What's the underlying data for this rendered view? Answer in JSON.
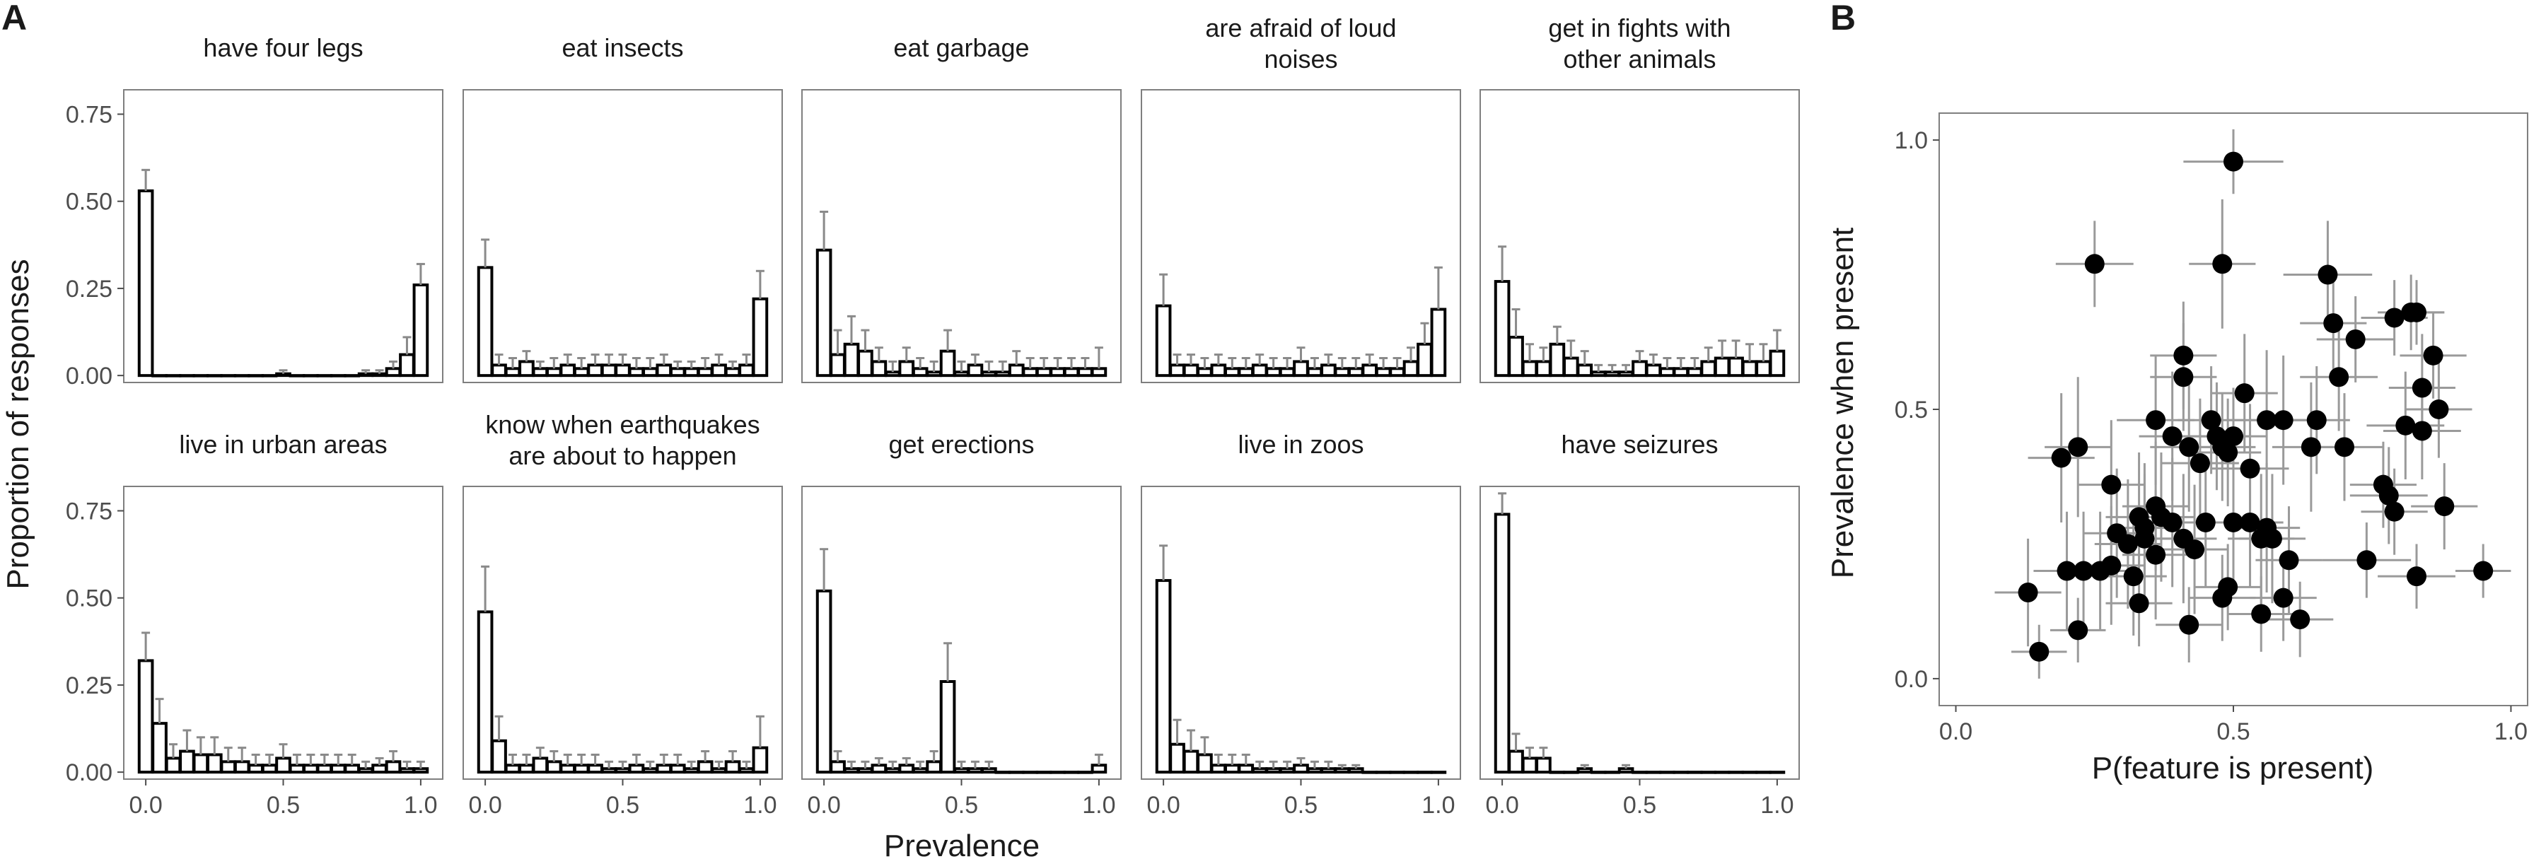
{
  "panel_a": {
    "tag": "A",
    "xlabel": "Prevalence",
    "ylabel": "Proportion of responses",
    "x_ticks": [
      "0.0",
      "0.5",
      "1.0"
    ],
    "y_ticks": [
      "0.00",
      "0.25",
      "0.50",
      "0.75"
    ]
  },
  "panel_b": {
    "tag": "B",
    "xlabel": "P(feature is present)",
    "ylabel": "Prevalence when present",
    "x_ticks": [
      "0.0",
      "0.5",
      "1.0"
    ],
    "y_ticks": [
      "0.0",
      "0.5",
      "1.0"
    ]
  },
  "chart_data": [
    {
      "type": "bar",
      "panel": "A",
      "xlabel": "Prevalence",
      "ylabel": "Proportion of responses",
      "xlim": [
        -0.08,
        1.08
      ],
      "ylim": [
        -0.02,
        0.82
      ],
      "bins": [
        0,
        0.05,
        0.1,
        0.15,
        0.2,
        0.25,
        0.3,
        0.35,
        0.4,
        0.45,
        0.5,
        0.55,
        0.6,
        0.65,
        0.7,
        0.75,
        0.8,
        0.85,
        0.9,
        0.95,
        1
      ],
      "error_bars": "upper whisker (value + error)",
      "facets": [
        {
          "title_lines": [
            "have four legs"
          ],
          "values": [
            0.53,
            0,
            0,
            0,
            0,
            0,
            0,
            0,
            0,
            0,
            0.005,
            0,
            0,
            0,
            0,
            0,
            0.005,
            0.005,
            0.02,
            0.06,
            0.26
          ],
          "errors": [
            0.06,
            0,
            0,
            0,
            0,
            0,
            0,
            0,
            0,
            0,
            0.01,
            0,
            0,
            0,
            0,
            0,
            0.01,
            0.01,
            0.02,
            0.05,
            0.06
          ]
        },
        {
          "title_lines": [
            "eat insects"
          ],
          "values": [
            0.31,
            0.03,
            0.02,
            0.04,
            0.02,
            0.02,
            0.03,
            0.02,
            0.03,
            0.03,
            0.03,
            0.02,
            0.02,
            0.03,
            0.02,
            0.02,
            0.02,
            0.03,
            0.02,
            0.03,
            0.22
          ],
          "errors": [
            0.08,
            0.03,
            0.03,
            0.03,
            0.02,
            0.03,
            0.03,
            0.03,
            0.03,
            0.03,
            0.03,
            0.03,
            0.03,
            0.03,
            0.02,
            0.02,
            0.03,
            0.03,
            0.02,
            0.03,
            0.08
          ]
        },
        {
          "title_lines": [
            "eat garbage"
          ],
          "values": [
            0.36,
            0.06,
            0.09,
            0.07,
            0.04,
            0.01,
            0.04,
            0.02,
            0.01,
            0.07,
            0.01,
            0.03,
            0.01,
            0.01,
            0.03,
            0.02,
            0.02,
            0.02,
            0.02,
            0.02,
            0.02
          ],
          "errors": [
            0.11,
            0.07,
            0.08,
            0.06,
            0.04,
            0.03,
            0.04,
            0.03,
            0.03,
            0.06,
            0.03,
            0.03,
            0.03,
            0.03,
            0.04,
            0.03,
            0.03,
            0.03,
            0.03,
            0.03,
            0.06
          ]
        },
        {
          "title_lines": [
            "are afraid of loud",
            "noises"
          ],
          "values": [
            0.2,
            0.03,
            0.03,
            0.02,
            0.03,
            0.02,
            0.02,
            0.03,
            0.02,
            0.02,
            0.04,
            0.02,
            0.03,
            0.02,
            0.02,
            0.03,
            0.02,
            0.02,
            0.04,
            0.09,
            0.19
          ],
          "errors": [
            0.09,
            0.03,
            0.03,
            0.03,
            0.03,
            0.03,
            0.03,
            0.03,
            0.03,
            0.03,
            0.04,
            0.03,
            0.03,
            0.03,
            0.03,
            0.03,
            0.03,
            0.03,
            0.04,
            0.06,
            0.12
          ]
        },
        {
          "title_lines": [
            "get in fights with",
            "other animals"
          ],
          "values": [
            0.27,
            0.11,
            0.04,
            0.04,
            0.09,
            0.05,
            0.03,
            0.01,
            0.01,
            0.01,
            0.04,
            0.03,
            0.02,
            0.02,
            0.02,
            0.04,
            0.05,
            0.05,
            0.04,
            0.04,
            0.07
          ],
          "errors": [
            0.1,
            0.08,
            0.05,
            0.04,
            0.05,
            0.05,
            0.04,
            0.02,
            0.02,
            0.02,
            0.03,
            0.03,
            0.03,
            0.03,
            0.03,
            0.04,
            0.05,
            0.05,
            0.05,
            0.05,
            0.06
          ]
        },
        {
          "title_lines": [
            "live in urban areas"
          ],
          "values": [
            0.32,
            0.14,
            0.04,
            0.06,
            0.05,
            0.05,
            0.03,
            0.03,
            0.02,
            0.02,
            0.04,
            0.02,
            0.02,
            0.02,
            0.02,
            0.02,
            0.01,
            0.02,
            0.03,
            0.01,
            0.01
          ],
          "errors": [
            0.08,
            0.07,
            0.04,
            0.06,
            0.05,
            0.05,
            0.04,
            0.04,
            0.03,
            0.03,
            0.04,
            0.03,
            0.03,
            0.03,
            0.03,
            0.03,
            0.02,
            0.02,
            0.03,
            0.02,
            0.02
          ]
        },
        {
          "title_lines": [
            "know when earthquakes",
            "are about to happen"
          ],
          "values": [
            0.46,
            0.09,
            0.02,
            0.02,
            0.04,
            0.03,
            0.02,
            0.02,
            0.02,
            0.01,
            0.01,
            0.02,
            0.01,
            0.02,
            0.02,
            0.01,
            0.03,
            0.01,
            0.03,
            0.01,
            0.07
          ],
          "errors": [
            0.13,
            0.07,
            0.03,
            0.03,
            0.03,
            0.03,
            0.03,
            0.03,
            0.03,
            0.02,
            0.02,
            0.03,
            0.02,
            0.03,
            0.03,
            0.02,
            0.03,
            0.02,
            0.03,
            0.02,
            0.09
          ]
        },
        {
          "title_lines": [
            "get erections"
          ],
          "values": [
            0.52,
            0.03,
            0.01,
            0.01,
            0.02,
            0.01,
            0.02,
            0.01,
            0.03,
            0.26,
            0.01,
            0.01,
            0.01,
            0,
            0,
            0,
            0,
            0,
            0,
            0,
            0.02
          ],
          "errors": [
            0.12,
            0.03,
            0.02,
            0.02,
            0.02,
            0.02,
            0.02,
            0.02,
            0.03,
            0.11,
            0.02,
            0.02,
            0.02,
            0,
            0,
            0,
            0,
            0,
            0,
            0,
            0.03
          ]
        },
        {
          "title_lines": [
            "live in zoos"
          ],
          "values": [
            0.55,
            0.08,
            0.06,
            0.05,
            0.02,
            0.02,
            0.02,
            0.01,
            0.01,
            0.01,
            0.02,
            0.01,
            0.01,
            0.01,
            0.01,
            0,
            0,
            0,
            0,
            0,
            0
          ],
          "errors": [
            0.1,
            0.07,
            0.06,
            0.05,
            0.03,
            0.03,
            0.03,
            0.02,
            0.02,
            0.02,
            0.02,
            0.02,
            0.02,
            0.01,
            0.01,
            0,
            0,
            0,
            0,
            0,
            0
          ]
        },
        {
          "title_lines": [
            "have seizures"
          ],
          "values": [
            0.74,
            0.06,
            0.04,
            0.04,
            0,
            0,
            0.01,
            0,
            0,
            0.01,
            0,
            0,
            0,
            0,
            0,
            0,
            0,
            0,
            0,
            0,
            0
          ],
          "errors": [
            0.06,
            0.05,
            0.03,
            0.03,
            0,
            0,
            0.01,
            0,
            0,
            0.01,
            0,
            0,
            0,
            0,
            0,
            0,
            0,
            0,
            0,
            0,
            0
          ]
        }
      ]
    },
    {
      "type": "scatter",
      "panel": "B",
      "xlabel": "P(feature is present)",
      "ylabel": "Prevalence when present",
      "xlim": [
        -0.03,
        1.03
      ],
      "ylim": [
        -0.05,
        1.05
      ],
      "points": [
        {
          "x": 0.5,
          "y": 0.96,
          "xerr": 0.09,
          "yerr": 0.06
        },
        {
          "x": 0.25,
          "y": 0.77,
          "xerr": 0.07,
          "yerr": 0.08
        },
        {
          "x": 0.48,
          "y": 0.77,
          "xerr": 0.06,
          "yerr": 0.12
        },
        {
          "x": 0.67,
          "y": 0.75,
          "xerr": 0.08,
          "yerr": 0.1
        },
        {
          "x": 0.68,
          "y": 0.66,
          "xerr": 0.06,
          "yerr": 0.1
        },
        {
          "x": 0.72,
          "y": 0.63,
          "xerr": 0.07,
          "yerr": 0.08
        },
        {
          "x": 0.79,
          "y": 0.67,
          "xerr": 0.06,
          "yerr": 0.07
        },
        {
          "x": 0.82,
          "y": 0.68,
          "xerr": 0.06,
          "yerr": 0.07
        },
        {
          "x": 0.83,
          "y": 0.68,
          "xerr": 0.05,
          "yerr": 0.06
        },
        {
          "x": 0.86,
          "y": 0.6,
          "xerr": 0.06,
          "yerr": 0.08
        },
        {
          "x": 0.84,
          "y": 0.54,
          "xerr": 0.06,
          "yerr": 0.1
        },
        {
          "x": 0.87,
          "y": 0.5,
          "xerr": 0.06,
          "yerr": 0.09
        },
        {
          "x": 0.81,
          "y": 0.47,
          "xerr": 0.07,
          "yerr": 0.1
        },
        {
          "x": 0.84,
          "y": 0.46,
          "xerr": 0.07,
          "yerr": 0.09
        },
        {
          "x": 0.88,
          "y": 0.32,
          "xerr": 0.06,
          "yerr": 0.08
        },
        {
          "x": 0.95,
          "y": 0.2,
          "xerr": 0.05,
          "yerr": 0.05
        },
        {
          "x": 0.83,
          "y": 0.19,
          "xerr": 0.07,
          "yerr": 0.06
        },
        {
          "x": 0.74,
          "y": 0.22,
          "xerr": 0.08,
          "yerr": 0.07
        },
        {
          "x": 0.78,
          "y": 0.34,
          "xerr": 0.07,
          "yerr": 0.09
        },
        {
          "x": 0.77,
          "y": 0.36,
          "xerr": 0.06,
          "yerr": 0.08
        },
        {
          "x": 0.79,
          "y": 0.31,
          "xerr": 0.06,
          "yerr": 0.08
        },
        {
          "x": 0.7,
          "y": 0.43,
          "xerr": 0.07,
          "yerr": 0.1
        },
        {
          "x": 0.69,
          "y": 0.56,
          "xerr": 0.07,
          "yerr": 0.1
        },
        {
          "x": 0.64,
          "y": 0.43,
          "xerr": 0.07,
          "yerr": 0.12
        },
        {
          "x": 0.65,
          "y": 0.48,
          "xerr": 0.06,
          "yerr": 0.1
        },
        {
          "x": 0.59,
          "y": 0.48,
          "xerr": 0.06,
          "yerr": 0.12
        },
        {
          "x": 0.56,
          "y": 0.48,
          "xerr": 0.07,
          "yerr": 0.13
        },
        {
          "x": 0.52,
          "y": 0.53,
          "xerr": 0.06,
          "yerr": 0.11
        },
        {
          "x": 0.53,
          "y": 0.39,
          "xerr": 0.07,
          "yerr": 0.12
        },
        {
          "x": 0.46,
          "y": 0.48,
          "xerr": 0.06,
          "yerr": 0.1
        },
        {
          "x": 0.47,
          "y": 0.45,
          "xerr": 0.06,
          "yerr": 0.1
        },
        {
          "x": 0.48,
          "y": 0.43,
          "xerr": 0.06,
          "yerr": 0.1
        },
        {
          "x": 0.49,
          "y": 0.42,
          "xerr": 0.06,
          "yerr": 0.1
        },
        {
          "x": 0.5,
          "y": 0.45,
          "xerr": 0.06,
          "yerr": 0.09
        },
        {
          "x": 0.41,
          "y": 0.6,
          "xerr": 0.06,
          "yerr": 0.1
        },
        {
          "x": 0.41,
          "y": 0.56,
          "xerr": 0.06,
          "yerr": 0.1
        },
        {
          "x": 0.36,
          "y": 0.48,
          "xerr": 0.07,
          "yerr": 0.12
        },
        {
          "x": 0.39,
          "y": 0.45,
          "xerr": 0.06,
          "yerr": 0.12
        },
        {
          "x": 0.42,
          "y": 0.43,
          "xerr": 0.07,
          "yerr": 0.12
        },
        {
          "x": 0.44,
          "y": 0.4,
          "xerr": 0.07,
          "yerr": 0.12
        },
        {
          "x": 0.19,
          "y": 0.41,
          "xerr": 0.06,
          "yerr": 0.12
        },
        {
          "x": 0.22,
          "y": 0.43,
          "xerr": 0.06,
          "yerr": 0.13
        },
        {
          "x": 0.28,
          "y": 0.36,
          "xerr": 0.06,
          "yerr": 0.12
        },
        {
          "x": 0.33,
          "y": 0.3,
          "xerr": 0.06,
          "yerr": 0.12
        },
        {
          "x": 0.34,
          "y": 0.28,
          "xerr": 0.06,
          "yerr": 0.12
        },
        {
          "x": 0.36,
          "y": 0.32,
          "xerr": 0.06,
          "yerr": 0.12
        },
        {
          "x": 0.37,
          "y": 0.3,
          "xerr": 0.06,
          "yerr": 0.12
        },
        {
          "x": 0.39,
          "y": 0.29,
          "xerr": 0.06,
          "yerr": 0.12
        },
        {
          "x": 0.41,
          "y": 0.26,
          "xerr": 0.06,
          "yerr": 0.12
        },
        {
          "x": 0.43,
          "y": 0.24,
          "xerr": 0.06,
          "yerr": 0.12
        },
        {
          "x": 0.45,
          "y": 0.29,
          "xerr": 0.06,
          "yerr": 0.12
        },
        {
          "x": 0.5,
          "y": 0.29,
          "xerr": 0.06,
          "yerr": 0.12
        },
        {
          "x": 0.53,
          "y": 0.29,
          "xerr": 0.06,
          "yerr": 0.12
        },
        {
          "x": 0.55,
          "y": 0.26,
          "xerr": 0.06,
          "yerr": 0.12
        },
        {
          "x": 0.56,
          "y": 0.28,
          "xerr": 0.06,
          "yerr": 0.12
        },
        {
          "x": 0.57,
          "y": 0.26,
          "xerr": 0.06,
          "yerr": 0.12
        },
        {
          "x": 0.29,
          "y": 0.27,
          "xerr": 0.06,
          "yerr": 0.12
        },
        {
          "x": 0.31,
          "y": 0.25,
          "xerr": 0.06,
          "yerr": 0.12
        },
        {
          "x": 0.34,
          "y": 0.26,
          "xerr": 0.06,
          "yerr": 0.12
        },
        {
          "x": 0.36,
          "y": 0.23,
          "xerr": 0.06,
          "yerr": 0.12
        },
        {
          "x": 0.28,
          "y": 0.21,
          "xerr": 0.06,
          "yerr": 0.11
        },
        {
          "x": 0.32,
          "y": 0.19,
          "xerr": 0.06,
          "yerr": 0.11
        },
        {
          "x": 0.26,
          "y": 0.2,
          "xerr": 0.06,
          "yerr": 0.11
        },
        {
          "x": 0.23,
          "y": 0.2,
          "xerr": 0.06,
          "yerr": 0.11
        },
        {
          "x": 0.2,
          "y": 0.2,
          "xerr": 0.06,
          "yerr": 0.11
        },
        {
          "x": 0.13,
          "y": 0.16,
          "xerr": 0.06,
          "yerr": 0.1
        },
        {
          "x": 0.15,
          "y": 0.05,
          "xerr": 0.05,
          "yerr": 0.05
        },
        {
          "x": 0.22,
          "y": 0.09,
          "xerr": 0.05,
          "yerr": 0.06
        },
        {
          "x": 0.33,
          "y": 0.14,
          "xerr": 0.06,
          "yerr": 0.08
        },
        {
          "x": 0.42,
          "y": 0.1,
          "xerr": 0.06,
          "yerr": 0.07
        },
        {
          "x": 0.49,
          "y": 0.17,
          "xerr": 0.06,
          "yerr": 0.08
        },
        {
          "x": 0.48,
          "y": 0.15,
          "xerr": 0.06,
          "yerr": 0.08
        },
        {
          "x": 0.55,
          "y": 0.12,
          "xerr": 0.06,
          "yerr": 0.07
        },
        {
          "x": 0.59,
          "y": 0.15,
          "xerr": 0.06,
          "yerr": 0.08
        },
        {
          "x": 0.62,
          "y": 0.11,
          "xerr": 0.06,
          "yerr": 0.07
        },
        {
          "x": 0.6,
          "y": 0.22,
          "xerr": 0.06,
          "yerr": 0.1
        }
      ]
    }
  ]
}
